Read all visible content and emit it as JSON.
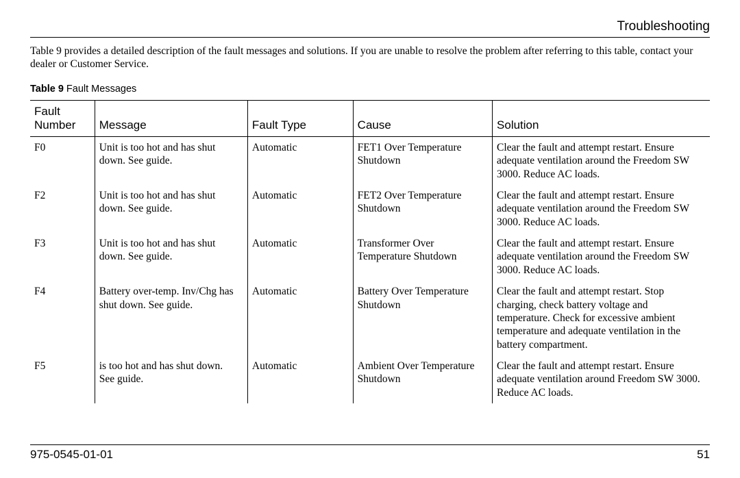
{
  "header": {
    "title": "Troubleshooting"
  },
  "intro": "Table 9 provides a detailed description of the fault messages and solutions. If you are unable to resolve the problem after referring to this table, contact your dealer or Customer Service.",
  "caption": {
    "label": "Table 9",
    "title": "Fault Messages"
  },
  "table": {
    "col_widths_pct": [
      9.5,
      22.5,
      15.5,
      20.5,
      32
    ],
    "columns": [
      "Fault Number",
      "Message",
      "Fault Type",
      "Cause",
      "Solution"
    ],
    "rows": [
      [
        "F0",
        "Unit is too hot and has shut down. See guide.",
        "Automatic",
        "FET1 Over Temperature Shutdown",
        "Clear the fault and attempt restart. Ensure adequate ventilation around the Freedom SW 3000. Reduce AC loads."
      ],
      [
        "F2",
        "Unit is too hot and has shut down. See guide.",
        "Automatic",
        "FET2 Over Temperature Shutdown",
        "Clear the fault and attempt restart. Ensure adequate ventilation around the Freedom SW 3000. Reduce AC loads."
      ],
      [
        "F3",
        "Unit is too hot and has shut down. See guide.",
        "Automatic",
        "Transformer Over Temperature Shutdown",
        "Clear the fault and attempt restart. Ensure adequate ventilation around the Freedom SW 3000. Reduce AC loads."
      ],
      [
        "F4",
        "Battery over-temp. Inv/Chg has shut down. See guide.",
        "Automatic",
        "Battery Over Temperature Shutdown",
        "Clear the fault and attempt restart. Stop charging, check battery voltage and temperature. Check for excessive ambient temperature and adequate ventilation in the battery compartment."
      ],
      [
        "F5",
        "is too hot and has shut down. See guide.",
        "Automatic",
        "Ambient Over Temperature Shutdown",
        "Clear the fault and attempt restart. Ensure adequate ventilation around Freedom SW 3000. Reduce AC loads."
      ]
    ]
  },
  "footer": {
    "doc_number": "975-0545-01-01",
    "page_number": "51"
  }
}
